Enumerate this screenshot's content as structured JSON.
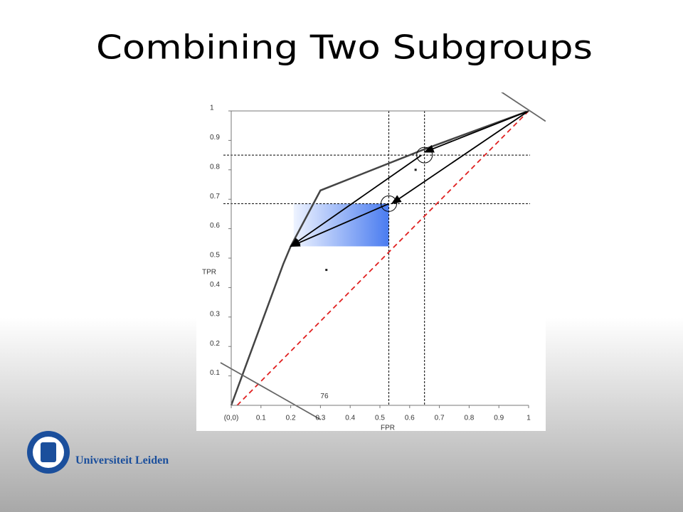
{
  "title": "Combining Two Subgroups",
  "chart_data": {
    "type": "line",
    "xlabel": "FPR",
    "ylabel": "TPR",
    "xlim": [
      0,
      1
    ],
    "ylim": [
      0,
      1
    ],
    "xticks": [
      {
        "value": 0,
        "label": "(0,0)"
      },
      0.1,
      0.2,
      0.3,
      0.4,
      0.5,
      0.6,
      0.7,
      0.8,
      0.9,
      1
    ],
    "yticks": [
      0.1,
      0.2,
      0.3,
      0.4,
      0.5,
      0.6,
      0.7,
      0.8,
      0.9,
      1
    ],
    "series": [
      {
        "color": "#444444",
        "style": "solid",
        "x": [
          0,
          0.175,
          0.2,
          0.3,
          0.65,
          1
        ],
        "values": [
          0,
          0.48,
          0.54,
          0.73,
          0.87,
          1
        ]
      },
      {
        "color": "#e02020",
        "style": "dashed",
        "x": [
          0.02,
          1
        ],
        "values": [
          0,
          1
        ]
      },
      {
        "color": "#666666",
        "style": "solid",
        "x": [
          -0.036,
          0.3
        ],
        "values": [
          0.145,
          -0.048
        ]
      },
      {
        "color": "#666666",
        "style": "solid",
        "x": [
          0.9,
          1.057
        ],
        "values": [
          1.07,
          0.965
        ]
      }
    ],
    "points": {
      "x": [
        0.32,
        0.62
      ],
      "values": [
        0.46,
        0.8
      ]
    },
    "vlines": [
      0.53,
      0.65
    ],
    "hlines": [
      0.685,
      0.85
    ],
    "highlight": {
      "x": [
        0.21,
        0.53
      ],
      "y": [
        0.54,
        0.685
      ]
    },
    "circles": [
      {
        "x": 0.65,
        "y": 0.85
      },
      {
        "x": 0.53,
        "y": 0.685
      }
    ],
    "arrows": [
      {
        "from": [
          1,
          1
        ],
        "to": [
          0.65,
          0.86
        ]
      },
      {
        "from": [
          1,
          1
        ],
        "to": [
          0.54,
          0.685
        ]
      },
      {
        "from": [
          0.64,
          0.85
        ],
        "to": [
          0.2,
          0.54
        ]
      },
      {
        "from": [
          0.53,
          0.685
        ],
        "to": [
          0.2,
          0.54
        ]
      }
    ],
    "annotation": {
      "text": "76",
      "x": 0.3,
      "y": 0.03
    }
  },
  "footer": {
    "logo_text": "Universiteit Leiden"
  }
}
